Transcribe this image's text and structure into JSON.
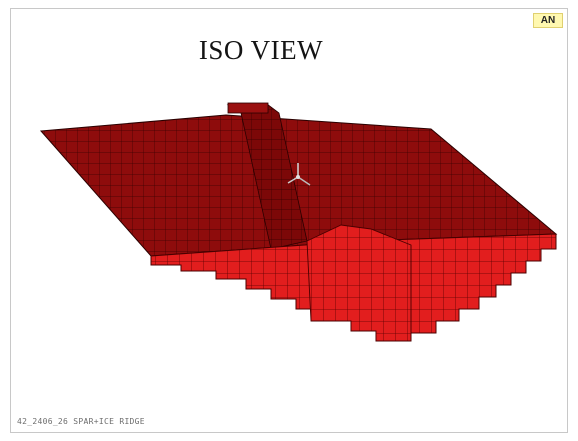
{
  "viewport": {
    "title": "ISO VIEW",
    "logo": "AN",
    "caption": "42_2406_26 SPAR+ICE RIDGE"
  },
  "colors": {
    "top_face": "#8e0c0c",
    "front_face": "#e21e1e",
    "grid_line": "#3a0000",
    "badge_bg": "#fff8b0"
  },
  "icons": [
    "coordinate-triad-icon"
  ]
}
